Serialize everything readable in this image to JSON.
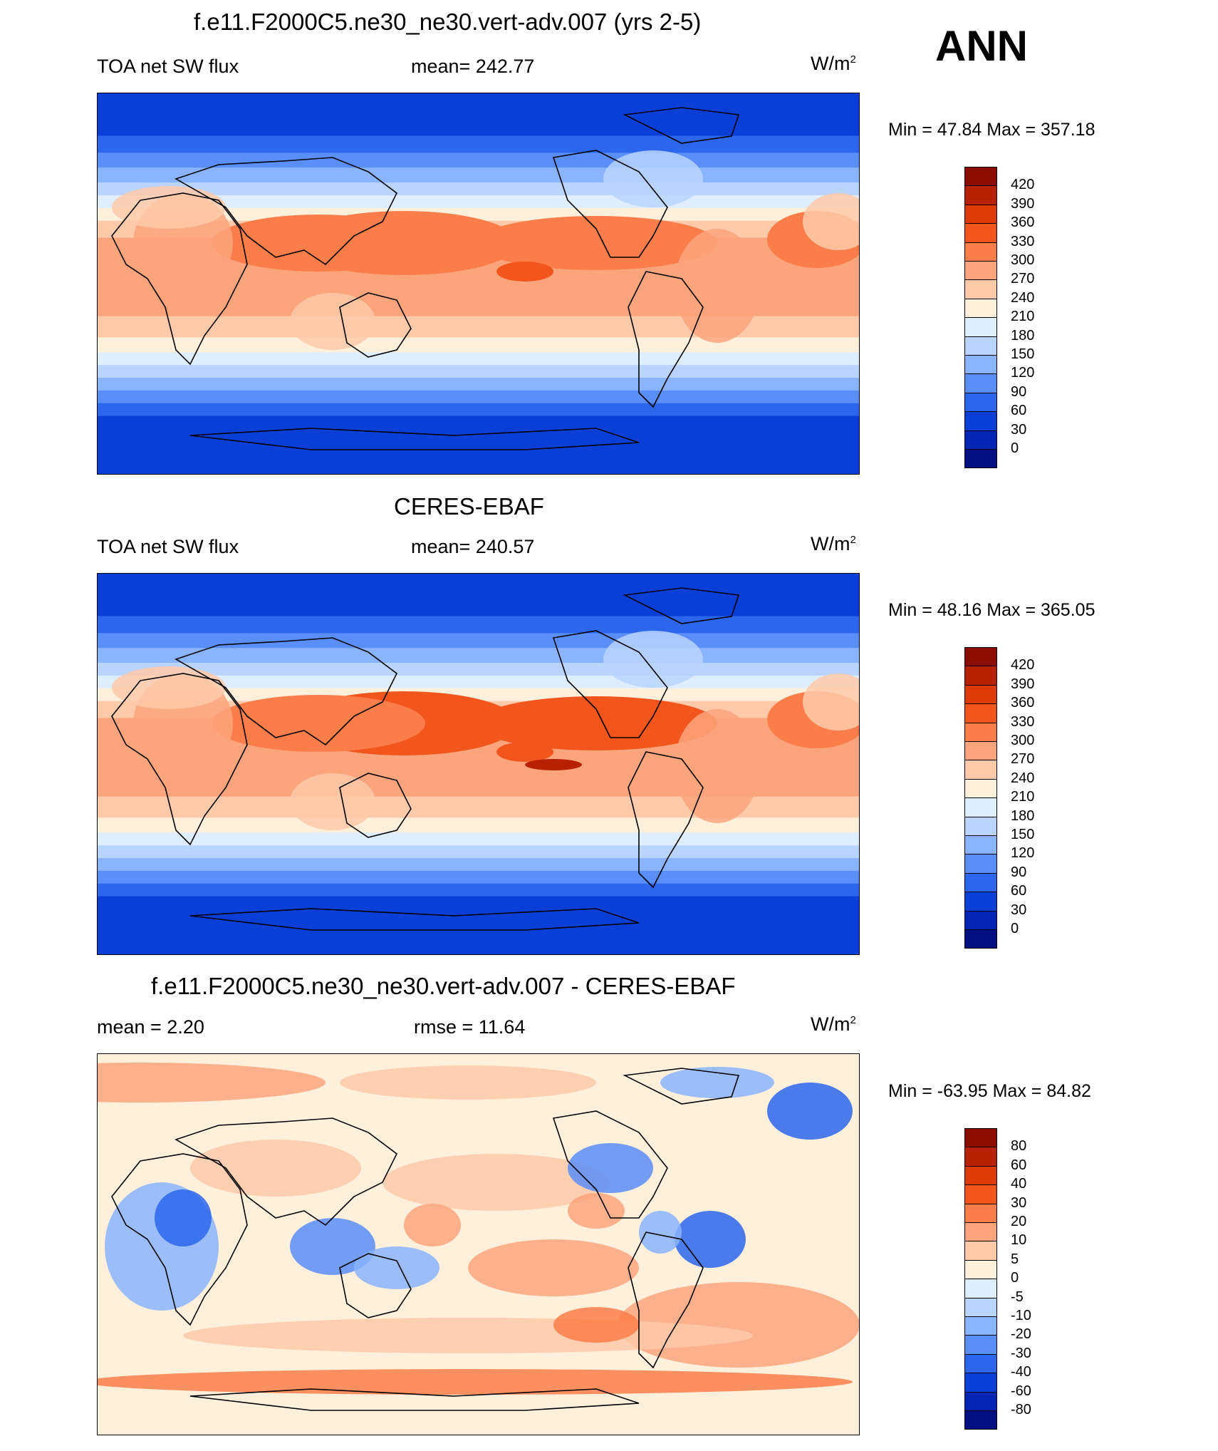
{
  "season": "ANN",
  "units_base": "W/m",
  "units_exp": "2",
  "panels": [
    {
      "title": "f.e11.F2000C5.ne30_ne30.vert-adv.007 (yrs 2-5)",
      "left": "TOA net SW flux",
      "center": "mean= 242.77",
      "minmax": "Min =  47.84 Max = 357.18",
      "kind": "model"
    },
    {
      "title": "CERES-EBAF",
      "left": "TOA net SW flux",
      "center": "mean= 240.57",
      "minmax": "Min =  48.16 Max = 365.05",
      "kind": "obs"
    },
    {
      "title": "f.e11.F2000C5.ne30_ne30.vert-adv.007 - CERES-EBAF",
      "left": "mean =    2.20",
      "center": "rmse =  11.64",
      "minmax": "Min = -63.95 Max =  84.82",
      "kind": "diff"
    }
  ],
  "colorbars": {
    "abs": {
      "labels": [
        "420",
        "390",
        "360",
        "330",
        "300",
        "270",
        "240",
        "210",
        "180",
        "150",
        "120",
        "90",
        "60",
        "30",
        "0"
      ],
      "colors": [
        "#8b0d02",
        "#b82100",
        "#de3a05",
        "#f2561d",
        "#fb7e4a",
        "#fca47c",
        "#fecaa9",
        "#fff0dc",
        "#dfeeff",
        "#b8d4ff",
        "#8ab4ff",
        "#5a8ef9",
        "#2c66ec",
        "#0a3fd7",
        "#0325b4",
        "#001080"
      ]
    },
    "diff": {
      "labels": [
        "80",
        "60",
        "40",
        "30",
        "20",
        "10",
        "5",
        "0",
        "-5",
        "-10",
        "-20",
        "-30",
        "-40",
        "-60",
        "-80"
      ],
      "colors": [
        "#8b0d02",
        "#b82100",
        "#de3a05",
        "#f2561d",
        "#fb7e4a",
        "#fca47c",
        "#fecaa9",
        "#fff0dc",
        "#dfeeff",
        "#b8d4ff",
        "#8ab4ff",
        "#5a8ef9",
        "#2c66ec",
        "#0a3fd7",
        "#0325b4",
        "#001080"
      ]
    }
  },
  "chart_data": {
    "type": "heatmap",
    "variable": "TOA net SW flux",
    "units": "W/m2",
    "season": "ANN",
    "maps": [
      {
        "name": "f.e11.F2000C5.ne30_ne30.vert-adv.007 (yrs 2-5)",
        "mean": 242.77,
        "min": 47.84,
        "max": 357.18,
        "levels": [
          0,
          30,
          60,
          90,
          120,
          150,
          180,
          210,
          240,
          270,
          300,
          330,
          360,
          390,
          420
        ]
      },
      {
        "name": "CERES-EBAF",
        "mean": 240.57,
        "min": 48.16,
        "max": 365.05,
        "levels": [
          0,
          30,
          60,
          90,
          120,
          150,
          180,
          210,
          240,
          270,
          300,
          330,
          360,
          390,
          420
        ]
      },
      {
        "name": "f.e11.F2000C5.ne30_ne30.vert-adv.007 - CERES-EBAF",
        "mean": 2.2,
        "rmse": 11.64,
        "min": -63.95,
        "max": 84.82,
        "levels": [
          -80,
          -60,
          -40,
          -30,
          -20,
          -10,
          -5,
          0,
          5,
          10,
          20,
          30,
          40,
          60,
          80
        ]
      }
    ]
  }
}
